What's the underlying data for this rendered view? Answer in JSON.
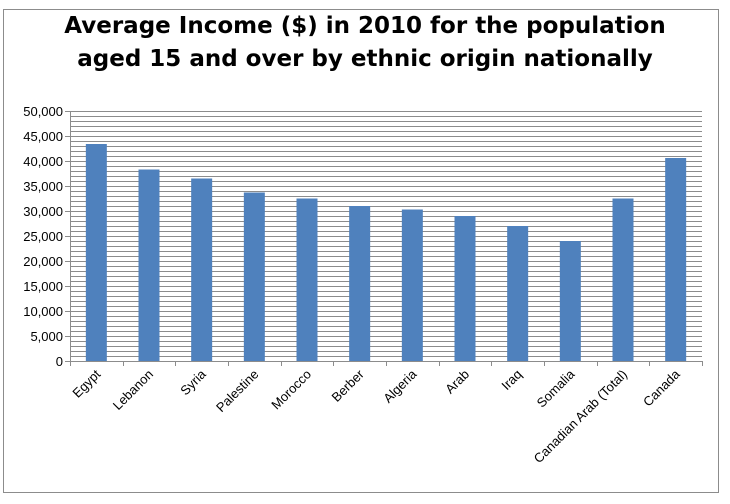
{
  "chart_data": {
    "type": "bar",
    "title": "Average Income ($) in 2010 for the population aged 15 and over by ethnic origin nationally",
    "title_lines": [
      "Average Income ($) in 2010 for the population",
      "aged 15 and over by ethnic origin nationally"
    ],
    "categories": [
      "Egypt",
      "Lebanon",
      "Syria",
      "Palestine",
      "Morocco",
      "Berber",
      "Algeria",
      "Arab",
      "Iraq",
      "Somalia",
      "Canadian Arab (Total)",
      "Canada"
    ],
    "values": [
      43400,
      38300,
      36500,
      33700,
      32500,
      31000,
      30300,
      29000,
      27000,
      24000,
      32500,
      40600
    ],
    "ylim": [
      0,
      50000
    ],
    "yticks": [
      "0",
      "5,000",
      "10,000",
      "15,000",
      "20,000",
      "25,000",
      "30,000",
      "35,000",
      "40,000",
      "45,000",
      "50,000"
    ],
    "xlabel": "",
    "ylabel": "",
    "grid": true,
    "legend": "none",
    "bar_color": "#4f81bd",
    "grid_color": "#8c8c8c"
  }
}
